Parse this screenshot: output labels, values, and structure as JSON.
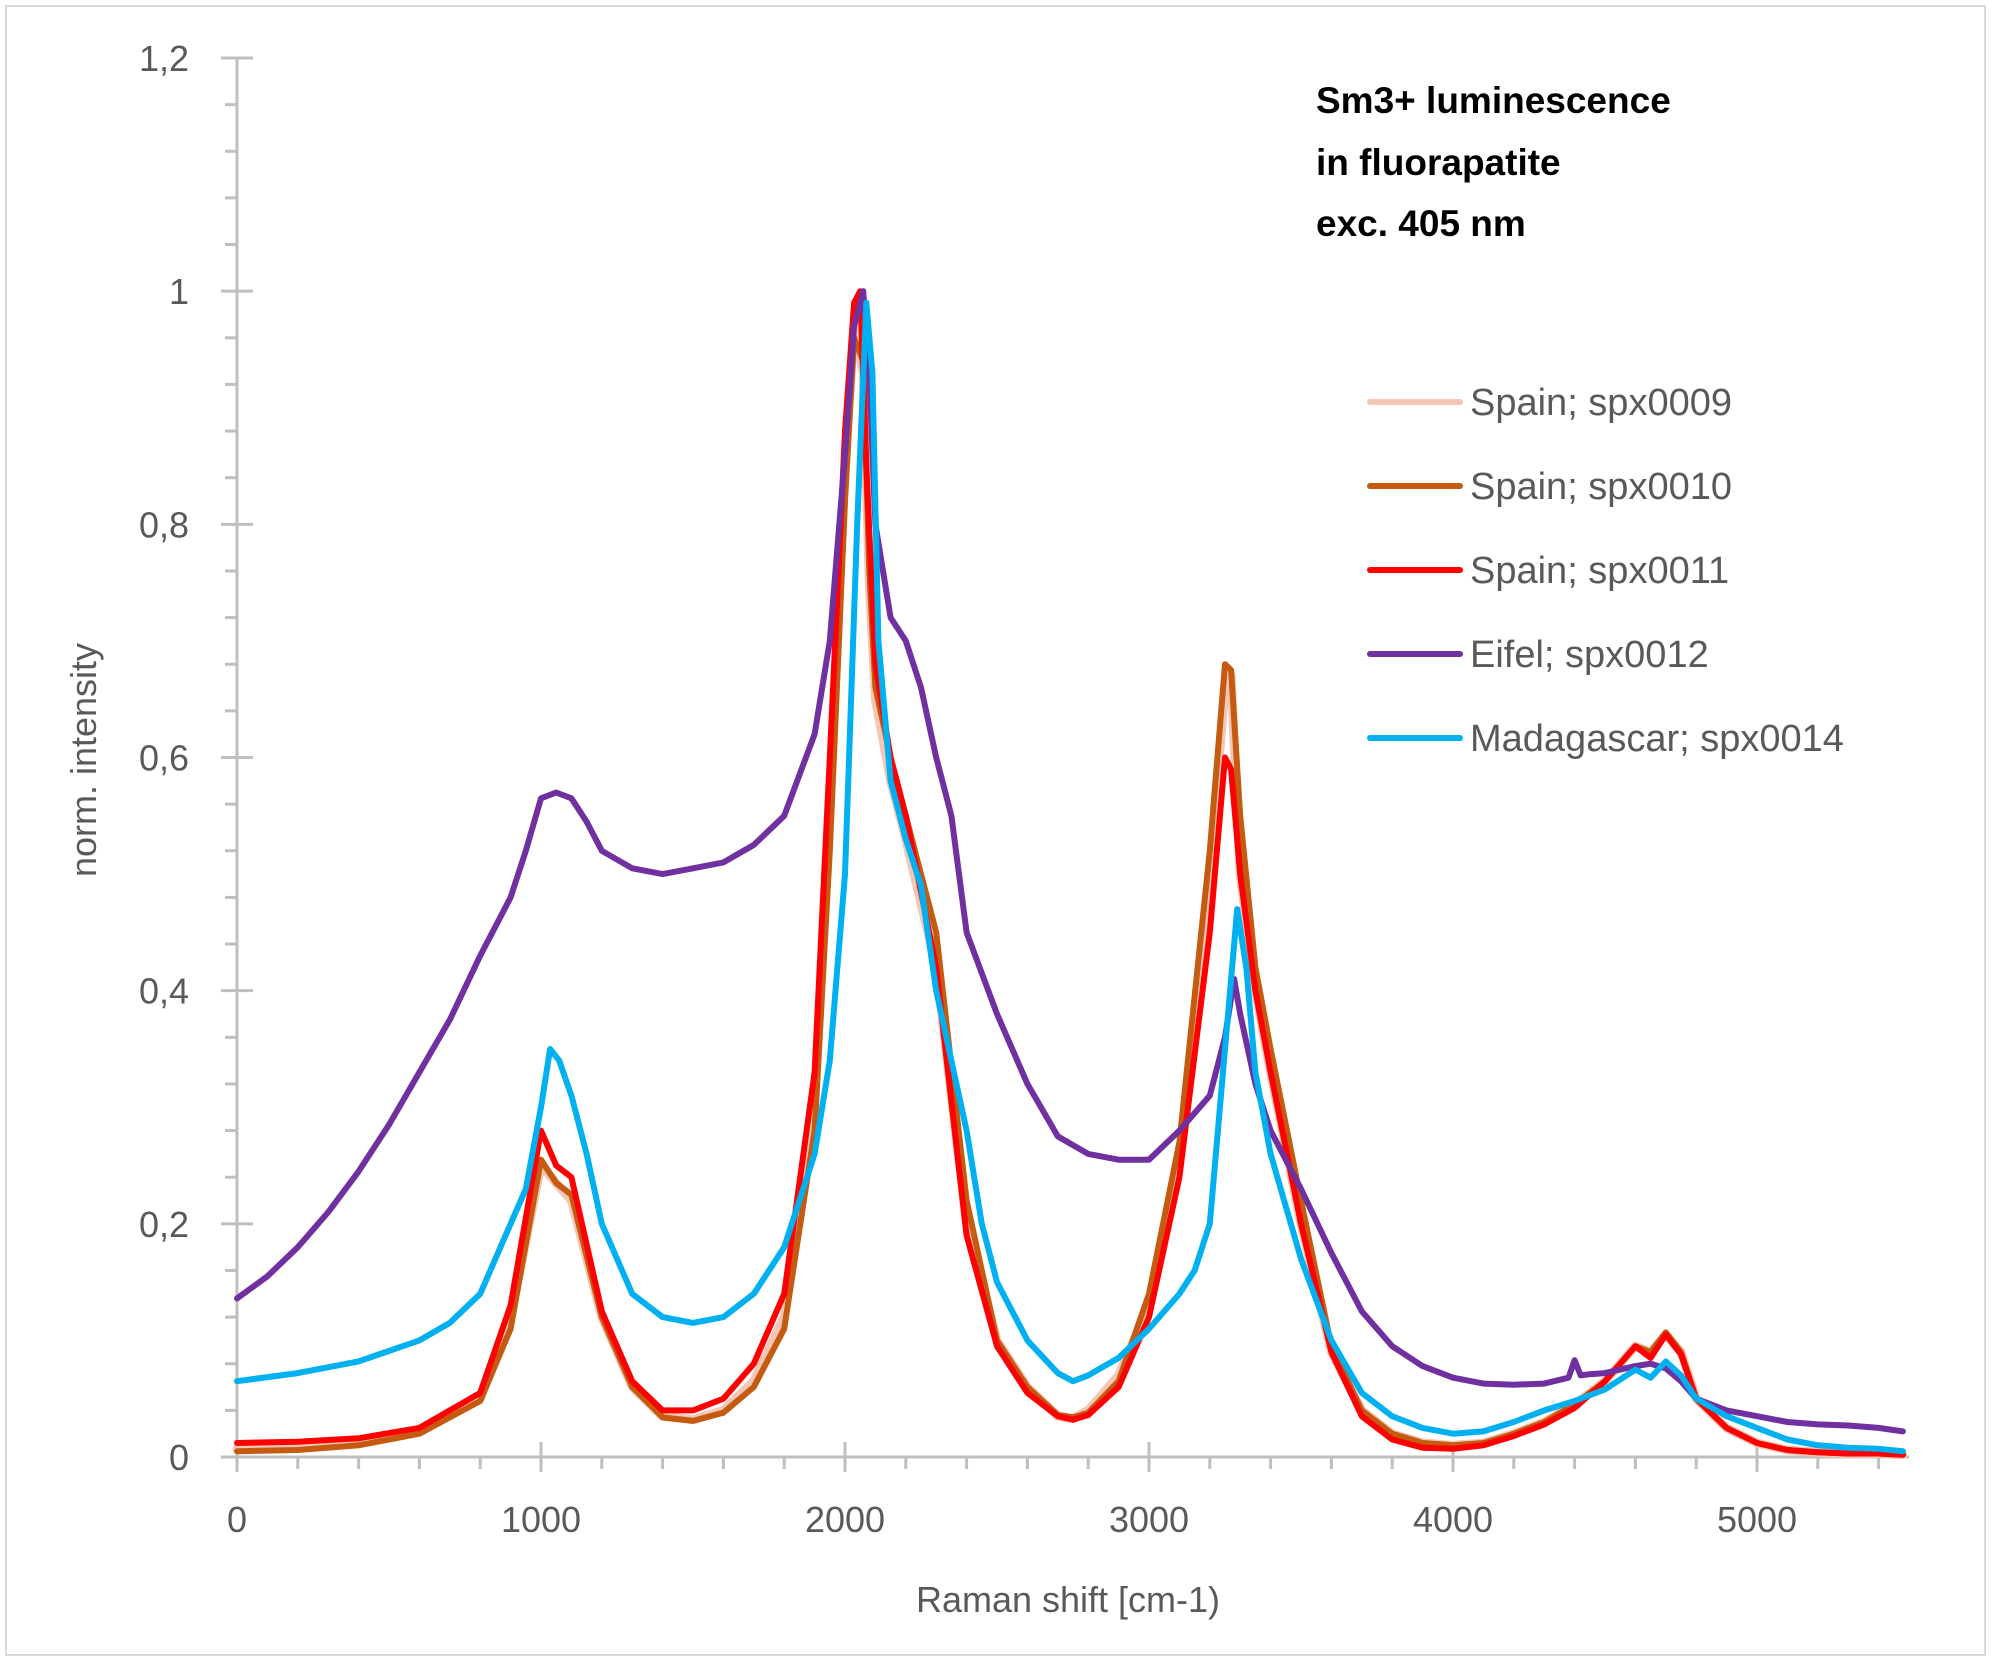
{
  "chart_data": {
    "type": "line",
    "annotation": [
      "Sm3+ luminescence",
      "in fluorapatite",
      "exc. 405 nm"
    ],
    "xlabel": "Raman shift [cm-1)",
    "ylabel": "norm. intensity",
    "xlim": [
      0,
      5500
    ],
    "ylim": [
      0,
      1.2
    ],
    "x_major_ticks": [
      0,
      1000,
      2000,
      3000,
      4000,
      5000
    ],
    "x_tick_labels": [
      "0",
      "1000",
      "2000",
      "3000",
      "4000",
      "5000"
    ],
    "x_minor_step": 200,
    "y_major_ticks": [
      0,
      0.2,
      0.4,
      0.6,
      0.8,
      1.0,
      1.2
    ],
    "y_tick_labels": [
      "0",
      "0,2",
      "0,4",
      "0,6",
      "0,8",
      "1",
      "1,2"
    ],
    "y_minor_step": 0.04,
    "grid": false,
    "legend_position": "right",
    "series": [
      {
        "name": "Spain; spx0009",
        "color": "#f4c7b5",
        "x": [
          0,
          200,
          400,
          600,
          800,
          900,
          1000,
          1050,
          1100,
          1200,
          1300,
          1400,
          1500,
          1600,
          1700,
          1800,
          1900,
          1950,
          2000,
          2030,
          2060,
          2080,
          2100,
          2150,
          2200,
          2300,
          2400,
          2500,
          2600,
          2700,
          2750,
          2800,
          2900,
          3000,
          3100,
          3200,
          3250,
          3270,
          3300,
          3350,
          3400,
          3500,
          3600,
          3700,
          3800,
          3900,
          4000,
          4100,
          4200,
          4300,
          4400,
          4500,
          4600,
          4650,
          4700,
          4750,
          4800,
          4900,
          5000,
          5100,
          5200,
          5300,
          5400,
          5480
        ],
        "y": [
          0.007,
          0.008,
          0.012,
          0.022,
          0.05,
          0.12,
          0.25,
          0.235,
          0.22,
          0.12,
          0.06,
          0.035,
          0.032,
          0.04,
          0.065,
          0.12,
          0.3,
          0.55,
          0.85,
          0.97,
          0.93,
          0.75,
          0.65,
          0.58,
          0.53,
          0.42,
          0.2,
          0.1,
          0.06,
          0.035,
          0.033,
          0.04,
          0.07,
          0.13,
          0.25,
          0.5,
          0.66,
          0.67,
          0.5,
          0.4,
          0.33,
          0.2,
          0.09,
          0.04,
          0.02,
          0.012,
          0.01,
          0.012,
          0.02,
          0.03,
          0.045,
          0.065,
          0.095,
          0.09,
          0.105,
          0.09,
          0.05,
          0.025,
          0.012,
          0.006,
          0.004,
          0.003,
          0.003,
          0.002
        ]
      },
      {
        "name": "Spain; spx0010",
        "color": "#c55a11",
        "x": [
          0,
          200,
          400,
          600,
          800,
          900,
          1000,
          1050,
          1100,
          1200,
          1300,
          1400,
          1500,
          1600,
          1700,
          1800,
          1900,
          1950,
          2000,
          2030,
          2060,
          2080,
          2100,
          2150,
          2200,
          2300,
          2400,
          2500,
          2600,
          2700,
          2750,
          2800,
          2900,
          3000,
          3100,
          3200,
          3250,
          3270,
          3300,
          3350,
          3400,
          3500,
          3600,
          3700,
          3800,
          3900,
          4000,
          4100,
          4200,
          4300,
          4400,
          4500,
          4600,
          4650,
          4700,
          4750,
          4800,
          4900,
          5000,
          5100,
          5200,
          5300,
          5400,
          5480
        ],
        "y": [
          0.005,
          0.006,
          0.01,
          0.02,
          0.048,
          0.11,
          0.255,
          0.235,
          0.225,
          0.12,
          0.06,
          0.034,
          0.031,
          0.038,
          0.06,
          0.11,
          0.28,
          0.52,
          0.82,
          0.96,
          0.94,
          0.76,
          0.66,
          0.6,
          0.55,
          0.45,
          0.22,
          0.1,
          0.06,
          0.036,
          0.034,
          0.038,
          0.065,
          0.14,
          0.27,
          0.52,
          0.68,
          0.675,
          0.55,
          0.42,
          0.35,
          0.22,
          0.095,
          0.04,
          0.02,
          0.012,
          0.01,
          0.012,
          0.02,
          0.03,
          0.045,
          0.065,
          0.095,
          0.09,
          0.107,
          0.09,
          0.05,
          0.025,
          0.012,
          0.006,
          0.004,
          0.003,
          0.003,
          0.002
        ]
      },
      {
        "name": "Spain; spx0011",
        "color": "#ff0000",
        "x": [
          0,
          200,
          400,
          600,
          800,
          900,
          1000,
          1050,
          1100,
          1200,
          1300,
          1400,
          1500,
          1600,
          1700,
          1800,
          1900,
          1950,
          2000,
          2030,
          2050,
          2070,
          2100,
          2150,
          2200,
          2300,
          2400,
          2500,
          2600,
          2700,
          2750,
          2800,
          2900,
          3000,
          3100,
          3200,
          3250,
          3270,
          3300,
          3350,
          3400,
          3500,
          3600,
          3700,
          3800,
          3900,
          4000,
          4100,
          4200,
          4300,
          4400,
          4500,
          4600,
          4650,
          4700,
          4750,
          4800,
          4900,
          5000,
          5100,
          5200,
          5300,
          5400,
          5480
        ],
        "y": [
          0.012,
          0.013,
          0.016,
          0.025,
          0.055,
          0.13,
          0.28,
          0.25,
          0.24,
          0.125,
          0.065,
          0.04,
          0.04,
          0.05,
          0.08,
          0.14,
          0.33,
          0.6,
          0.88,
          0.99,
          1.0,
          0.85,
          0.68,
          0.6,
          0.55,
          0.42,
          0.19,
          0.095,
          0.055,
          0.035,
          0.032,
          0.036,
          0.06,
          0.12,
          0.24,
          0.45,
          0.6,
          0.59,
          0.5,
          0.4,
          0.33,
          0.2,
          0.09,
          0.035,
          0.015,
          0.008,
          0.007,
          0.01,
          0.018,
          0.028,
          0.042,
          0.065,
          0.095,
          0.085,
          0.105,
          0.088,
          0.05,
          0.025,
          0.012,
          0.006,
          0.004,
          0.003,
          0.003,
          0.002
        ]
      },
      {
        "name": "Eifel; spx0012",
        "color": "#7030a0",
        "x": [
          0,
          100,
          200,
          300,
          400,
          500,
          600,
          700,
          800,
          900,
          950,
          1000,
          1050,
          1100,
          1150,
          1200,
          1300,
          1400,
          1500,
          1600,
          1700,
          1800,
          1900,
          1950,
          2000,
          2030,
          2060,
          2080,
          2100,
          2150,
          2200,
          2250,
          2300,
          2350,
          2400,
          2500,
          2600,
          2700,
          2800,
          2900,
          3000,
          3100,
          3200,
          3250,
          3280,
          3300,
          3350,
          3400,
          3500,
          3600,
          3700,
          3800,
          3900,
          4000,
          4100,
          4200,
          4300,
          4380,
          4400,
          4420,
          4450,
          4500,
          4600,
          4650,
          4700,
          4750,
          4800,
          4900,
          5000,
          5100,
          5200,
          5300,
          5400,
          5480
        ],
        "y": [
          0.136,
          0.155,
          0.18,
          0.21,
          0.245,
          0.285,
          0.33,
          0.375,
          0.43,
          0.48,
          0.52,
          0.565,
          0.57,
          0.565,
          0.545,
          0.52,
          0.505,
          0.5,
          0.505,
          0.51,
          0.525,
          0.55,
          0.62,
          0.7,
          0.86,
          0.97,
          1.0,
          0.93,
          0.8,
          0.72,
          0.7,
          0.66,
          0.6,
          0.55,
          0.45,
          0.38,
          0.32,
          0.275,
          0.26,
          0.255,
          0.255,
          0.28,
          0.31,
          0.36,
          0.41,
          0.38,
          0.32,
          0.28,
          0.23,
          0.175,
          0.125,
          0.095,
          0.078,
          0.068,
          0.063,
          0.062,
          0.063,
          0.068,
          0.083,
          0.07,
          0.071,
          0.072,
          0.078,
          0.08,
          0.076,
          0.065,
          0.05,
          0.04,
          0.035,
          0.03,
          0.028,
          0.027,
          0.025,
          0.022
        ]
      },
      {
        "name": "Madagascar; spx0014",
        "color": "#00b0f0",
        "x": [
          0,
          200,
          400,
          600,
          700,
          800,
          850,
          900,
          950,
          1000,
          1030,
          1060,
          1100,
          1150,
          1200,
          1300,
          1400,
          1500,
          1600,
          1700,
          1800,
          1900,
          1950,
          2000,
          2040,
          2070,
          2090,
          2110,
          2150,
          2200,
          2250,
          2300,
          2400,
          2450,
          2500,
          2600,
          2700,
          2750,
          2800,
          2900,
          3000,
          3100,
          3150,
          3200,
          3250,
          3290,
          3320,
          3350,
          3400,
          3500,
          3600,
          3700,
          3800,
          3900,
          4000,
          4100,
          4200,
          4300,
          4400,
          4500,
          4600,
          4650,
          4700,
          4750,
          4800,
          4900,
          5000,
          5100,
          5200,
          5300,
          5400,
          5480
        ],
        "y": [
          0.065,
          0.072,
          0.082,
          0.1,
          0.115,
          0.14,
          0.17,
          0.2,
          0.23,
          0.3,
          0.35,
          0.34,
          0.31,
          0.26,
          0.2,
          0.14,
          0.12,
          0.115,
          0.12,
          0.14,
          0.18,
          0.26,
          0.34,
          0.5,
          0.8,
          0.99,
          0.93,
          0.7,
          0.58,
          0.53,
          0.49,
          0.4,
          0.28,
          0.2,
          0.15,
          0.1,
          0.072,
          0.065,
          0.07,
          0.085,
          0.11,
          0.14,
          0.16,
          0.2,
          0.35,
          0.47,
          0.42,
          0.33,
          0.26,
          0.17,
          0.1,
          0.055,
          0.035,
          0.025,
          0.02,
          0.022,
          0.03,
          0.04,
          0.048,
          0.058,
          0.075,
          0.068,
          0.082,
          0.07,
          0.05,
          0.035,
          0.025,
          0.015,
          0.01,
          0.008,
          0.007,
          0.005
        ]
      }
    ]
  }
}
